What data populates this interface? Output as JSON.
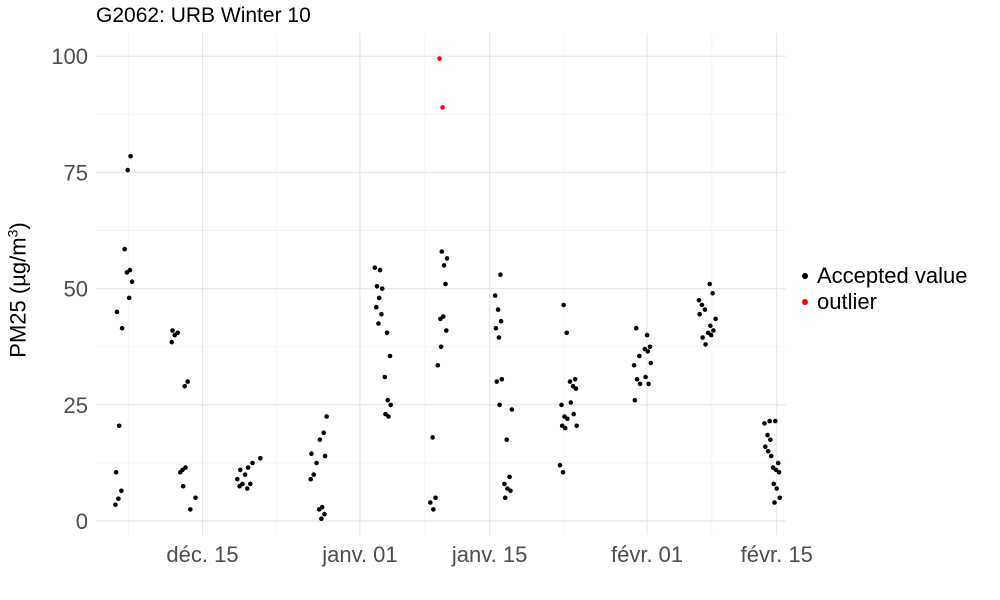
{
  "title": "G2062: URB Winter 10",
  "chart_data": {
    "type": "scatter",
    "title": "G2062: URB Winter 10",
    "xlabel": "",
    "ylabel": "PM25 (µg/m³)",
    "ylabel_parts": {
      "main": "PM25 (µg/m",
      "sup": "3",
      "close": ")"
    },
    "x_scale": "date",
    "xlim": [
      "2022-12-04",
      "2023-02-15"
    ],
    "ylim": [
      -3,
      105
    ],
    "x_ticks": [
      {
        "date": "2022-12-15",
        "label": "déc. 15"
      },
      {
        "date": "2023-01-01",
        "label": "janv. 01"
      },
      {
        "date": "2023-01-15",
        "label": "janv. 15"
      },
      {
        "date": "2023-02-01",
        "label": "févr. 01"
      },
      {
        "date": "2023-02-15",
        "label": "févr. 15"
      }
    ],
    "x_minor_ticks": [
      "2022-12-07",
      "2022-12-23",
      "2023-01-08",
      "2023-01-23",
      "2023-02-08"
    ],
    "y_ticks": [
      0,
      25,
      50,
      75,
      100
    ],
    "y_minor_ticks": [
      12.5,
      37.5,
      62.5,
      87.5
    ],
    "grid": true,
    "legend_position": "right",
    "series": [
      {
        "name": "Accepted value",
        "color": "#000000",
        "points": [
          [
            "2022-12-06",
            3.5
          ],
          [
            "2022-12-06",
            4.8
          ],
          [
            "2022-12-06",
            6.5
          ],
          [
            "2022-12-06",
            10.5
          ],
          [
            "2022-12-06",
            20.5
          ],
          [
            "2022-12-06",
            41.5
          ],
          [
            "2022-12-06",
            45.0
          ],
          [
            "2022-12-07",
            48.0
          ],
          [
            "2022-12-07",
            51.5
          ],
          [
            "2022-12-07",
            53.5
          ],
          [
            "2022-12-07",
            54.0
          ],
          [
            "2022-12-07",
            58.5
          ],
          [
            "2022-12-07",
            75.5
          ],
          [
            "2022-12-07",
            78.5
          ],
          [
            "2022-12-12",
            38.5
          ],
          [
            "2022-12-12",
            40.0
          ],
          [
            "2022-12-12",
            40.5
          ],
          [
            "2022-12-12",
            41.0
          ],
          [
            "2022-12-13",
            29.0
          ],
          [
            "2022-12-13",
            30.0
          ],
          [
            "2022-12-13",
            11.0
          ],
          [
            "2022-12-13",
            11.5
          ],
          [
            "2022-12-13",
            10.5
          ],
          [
            "2022-12-13",
            7.5
          ],
          [
            "2022-12-14",
            5.0
          ],
          [
            "2022-12-14",
            2.5
          ],
          [
            "2022-12-19",
            7.5
          ],
          [
            "2022-12-19",
            8.0
          ],
          [
            "2022-12-19",
            9.0
          ],
          [
            "2022-12-19",
            11.0
          ],
          [
            "2022-12-20",
            12.5
          ],
          [
            "2022-12-20",
            7.0
          ],
          [
            "2022-12-20",
            8.0
          ],
          [
            "2022-12-20",
            10.0
          ],
          [
            "2022-12-20",
            11.5
          ],
          [
            "2022-12-21",
            13.5
          ],
          [
            "2022-12-27",
            9.0
          ],
          [
            "2022-12-27",
            10.0
          ],
          [
            "2022-12-27",
            12.5
          ],
          [
            "2022-12-27",
            14.5
          ],
          [
            "2022-12-28",
            19.0
          ],
          [
            "2022-12-28",
            22.5
          ],
          [
            "2022-12-28",
            0.5
          ],
          [
            "2022-12-28",
            1.5
          ],
          [
            "2022-12-28",
            2.5
          ],
          [
            "2022-12-28",
            3.0
          ],
          [
            "2022-12-28",
            14.0
          ],
          [
            "2022-12-28",
            17.5
          ],
          [
            "2023-01-03",
            42.5
          ],
          [
            "2023-01-03",
            44.5
          ],
          [
            "2023-01-03",
            46.0
          ],
          [
            "2023-01-03",
            48.0
          ],
          [
            "2023-01-03",
            50.0
          ],
          [
            "2023-01-03",
            50.5
          ],
          [
            "2023-01-03",
            54.0
          ],
          [
            "2023-01-03",
            54.5
          ],
          [
            "2023-01-04",
            40.5
          ],
          [
            "2023-01-04",
            35.5
          ],
          [
            "2023-01-04",
            31.0
          ],
          [
            "2023-01-04",
            26.0
          ],
          [
            "2023-01-04",
            25.0
          ],
          [
            "2023-01-04",
            23.0
          ],
          [
            "2023-01-04",
            22.5
          ],
          [
            "2023-01-09",
            33.5
          ],
          [
            "2023-01-09",
            18.0
          ],
          [
            "2023-01-09",
            5.0
          ],
          [
            "2023-01-09",
            4.0
          ],
          [
            "2023-01-09",
            2.5
          ],
          [
            "2023-01-10",
            51.0
          ],
          [
            "2023-01-10",
            43.5
          ],
          [
            "2023-01-10",
            44.0
          ],
          [
            "2023-01-10",
            41.0
          ],
          [
            "2023-01-10",
            37.5
          ],
          [
            "2023-01-10",
            55.0
          ],
          [
            "2023-01-10",
            56.5
          ],
          [
            "2023-01-10",
            58.0
          ],
          [
            "2023-01-16",
            53.0
          ],
          [
            "2023-01-16",
            48.5
          ],
          [
            "2023-01-16",
            45.5
          ],
          [
            "2023-01-16",
            43.0
          ],
          [
            "2023-01-16",
            41.5
          ],
          [
            "2023-01-16",
            39.5
          ],
          [
            "2023-01-16",
            30.5
          ],
          [
            "2023-01-16",
            30.0
          ],
          [
            "2023-01-16",
            25.0
          ],
          [
            "2023-01-17",
            24.0
          ],
          [
            "2023-01-17",
            17.5
          ],
          [
            "2023-01-17",
            9.5
          ],
          [
            "2023-01-17",
            8.0
          ],
          [
            "2023-01-17",
            7.0
          ],
          [
            "2023-01-17",
            6.5
          ],
          [
            "2023-01-17",
            5.0
          ],
          [
            "2023-01-23",
            46.5
          ],
          [
            "2023-01-23",
            40.5
          ],
          [
            "2023-01-23",
            25.0
          ],
          [
            "2023-01-23",
            22.5
          ],
          [
            "2023-01-23",
            22.0
          ],
          [
            "2023-01-23",
            20.5
          ],
          [
            "2023-01-23",
            20.0
          ],
          [
            "2023-01-23",
            12.0
          ],
          [
            "2023-01-23",
            10.5
          ],
          [
            "2023-01-24",
            30.5
          ],
          [
            "2023-01-24",
            30.0
          ],
          [
            "2023-01-24",
            29.0
          ],
          [
            "2023-01-24",
            28.5
          ],
          [
            "2023-01-24",
            25.5
          ],
          [
            "2023-01-24",
            23.0
          ],
          [
            "2023-01-24",
            20.5
          ],
          [
            "2023-01-31",
            41.5
          ],
          [
            "2023-01-31",
            35.5
          ],
          [
            "2023-01-31",
            33.5
          ],
          [
            "2023-01-31",
            30.5
          ],
          [
            "2023-01-31",
            29.5
          ],
          [
            "2023-01-31",
            26.0
          ],
          [
            "2023-02-01",
            40.0
          ],
          [
            "2023-02-01",
            37.5
          ],
          [
            "2023-02-01",
            37.0
          ],
          [
            "2023-02-01",
            36.5
          ],
          [
            "2023-02-01",
            34.0
          ],
          [
            "2023-02-01",
            31.0
          ],
          [
            "2023-02-01",
            29.5
          ],
          [
            "2023-02-07",
            47.5
          ],
          [
            "2023-02-07",
            46.5
          ],
          [
            "2023-02-07",
            45.5
          ],
          [
            "2023-02-07",
            44.5
          ],
          [
            "2023-02-07",
            39.5
          ],
          [
            "2023-02-07",
            38.0
          ],
          [
            "2023-02-08",
            51.0
          ],
          [
            "2023-02-08",
            49.0
          ],
          [
            "2023-02-08",
            43.5
          ],
          [
            "2023-02-08",
            42.0
          ],
          [
            "2023-02-08",
            41.0
          ],
          [
            "2023-02-08",
            40.5
          ],
          [
            "2023-02-08",
            40.0
          ],
          [
            "2023-02-14",
            21.5
          ],
          [
            "2023-02-14",
            21.0
          ],
          [
            "2023-02-14",
            18.5
          ],
          [
            "2023-02-14",
            17.5
          ],
          [
            "2023-02-14",
            16.0
          ],
          [
            "2023-02-14",
            15.0
          ],
          [
            "2023-02-14",
            14.0
          ],
          [
            "2023-02-15",
            21.5
          ],
          [
            "2023-02-15",
            12.5
          ],
          [
            "2023-02-15",
            11.5
          ],
          [
            "2023-02-15",
            11.0
          ],
          [
            "2023-02-15",
            10.5
          ],
          [
            "2023-02-15",
            8.0
          ],
          [
            "2023-02-15",
            7.0
          ],
          [
            "2023-02-15",
            5.0
          ],
          [
            "2023-02-15",
            4.0
          ]
        ]
      },
      {
        "name": "outlier",
        "color": "#ff0000",
        "points": [
          [
            "2023-01-10",
            99.5
          ],
          [
            "2023-01-10",
            89.0
          ]
        ]
      }
    ]
  }
}
